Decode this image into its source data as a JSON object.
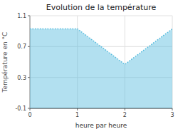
{
  "chart_data": {
    "type": "area",
    "title": "Evolution de la température",
    "x_label": "heure par heure",
    "y_label": "Température en °C",
    "x": [
      0,
      1,
      2,
      3
    ],
    "values": [
      0.93,
      0.93,
      0.47,
      0.93
    ],
    "xlim": [
      0,
      3
    ],
    "ylim": [
      -0.1,
      1.1
    ],
    "xticks": [
      0,
      1,
      2,
      3
    ],
    "yticks": [
      -0.1,
      0.3,
      0.7,
      1.1
    ],
    "color": "#55bbdd",
    "line_style": "dotted",
    "grid": true
  }
}
